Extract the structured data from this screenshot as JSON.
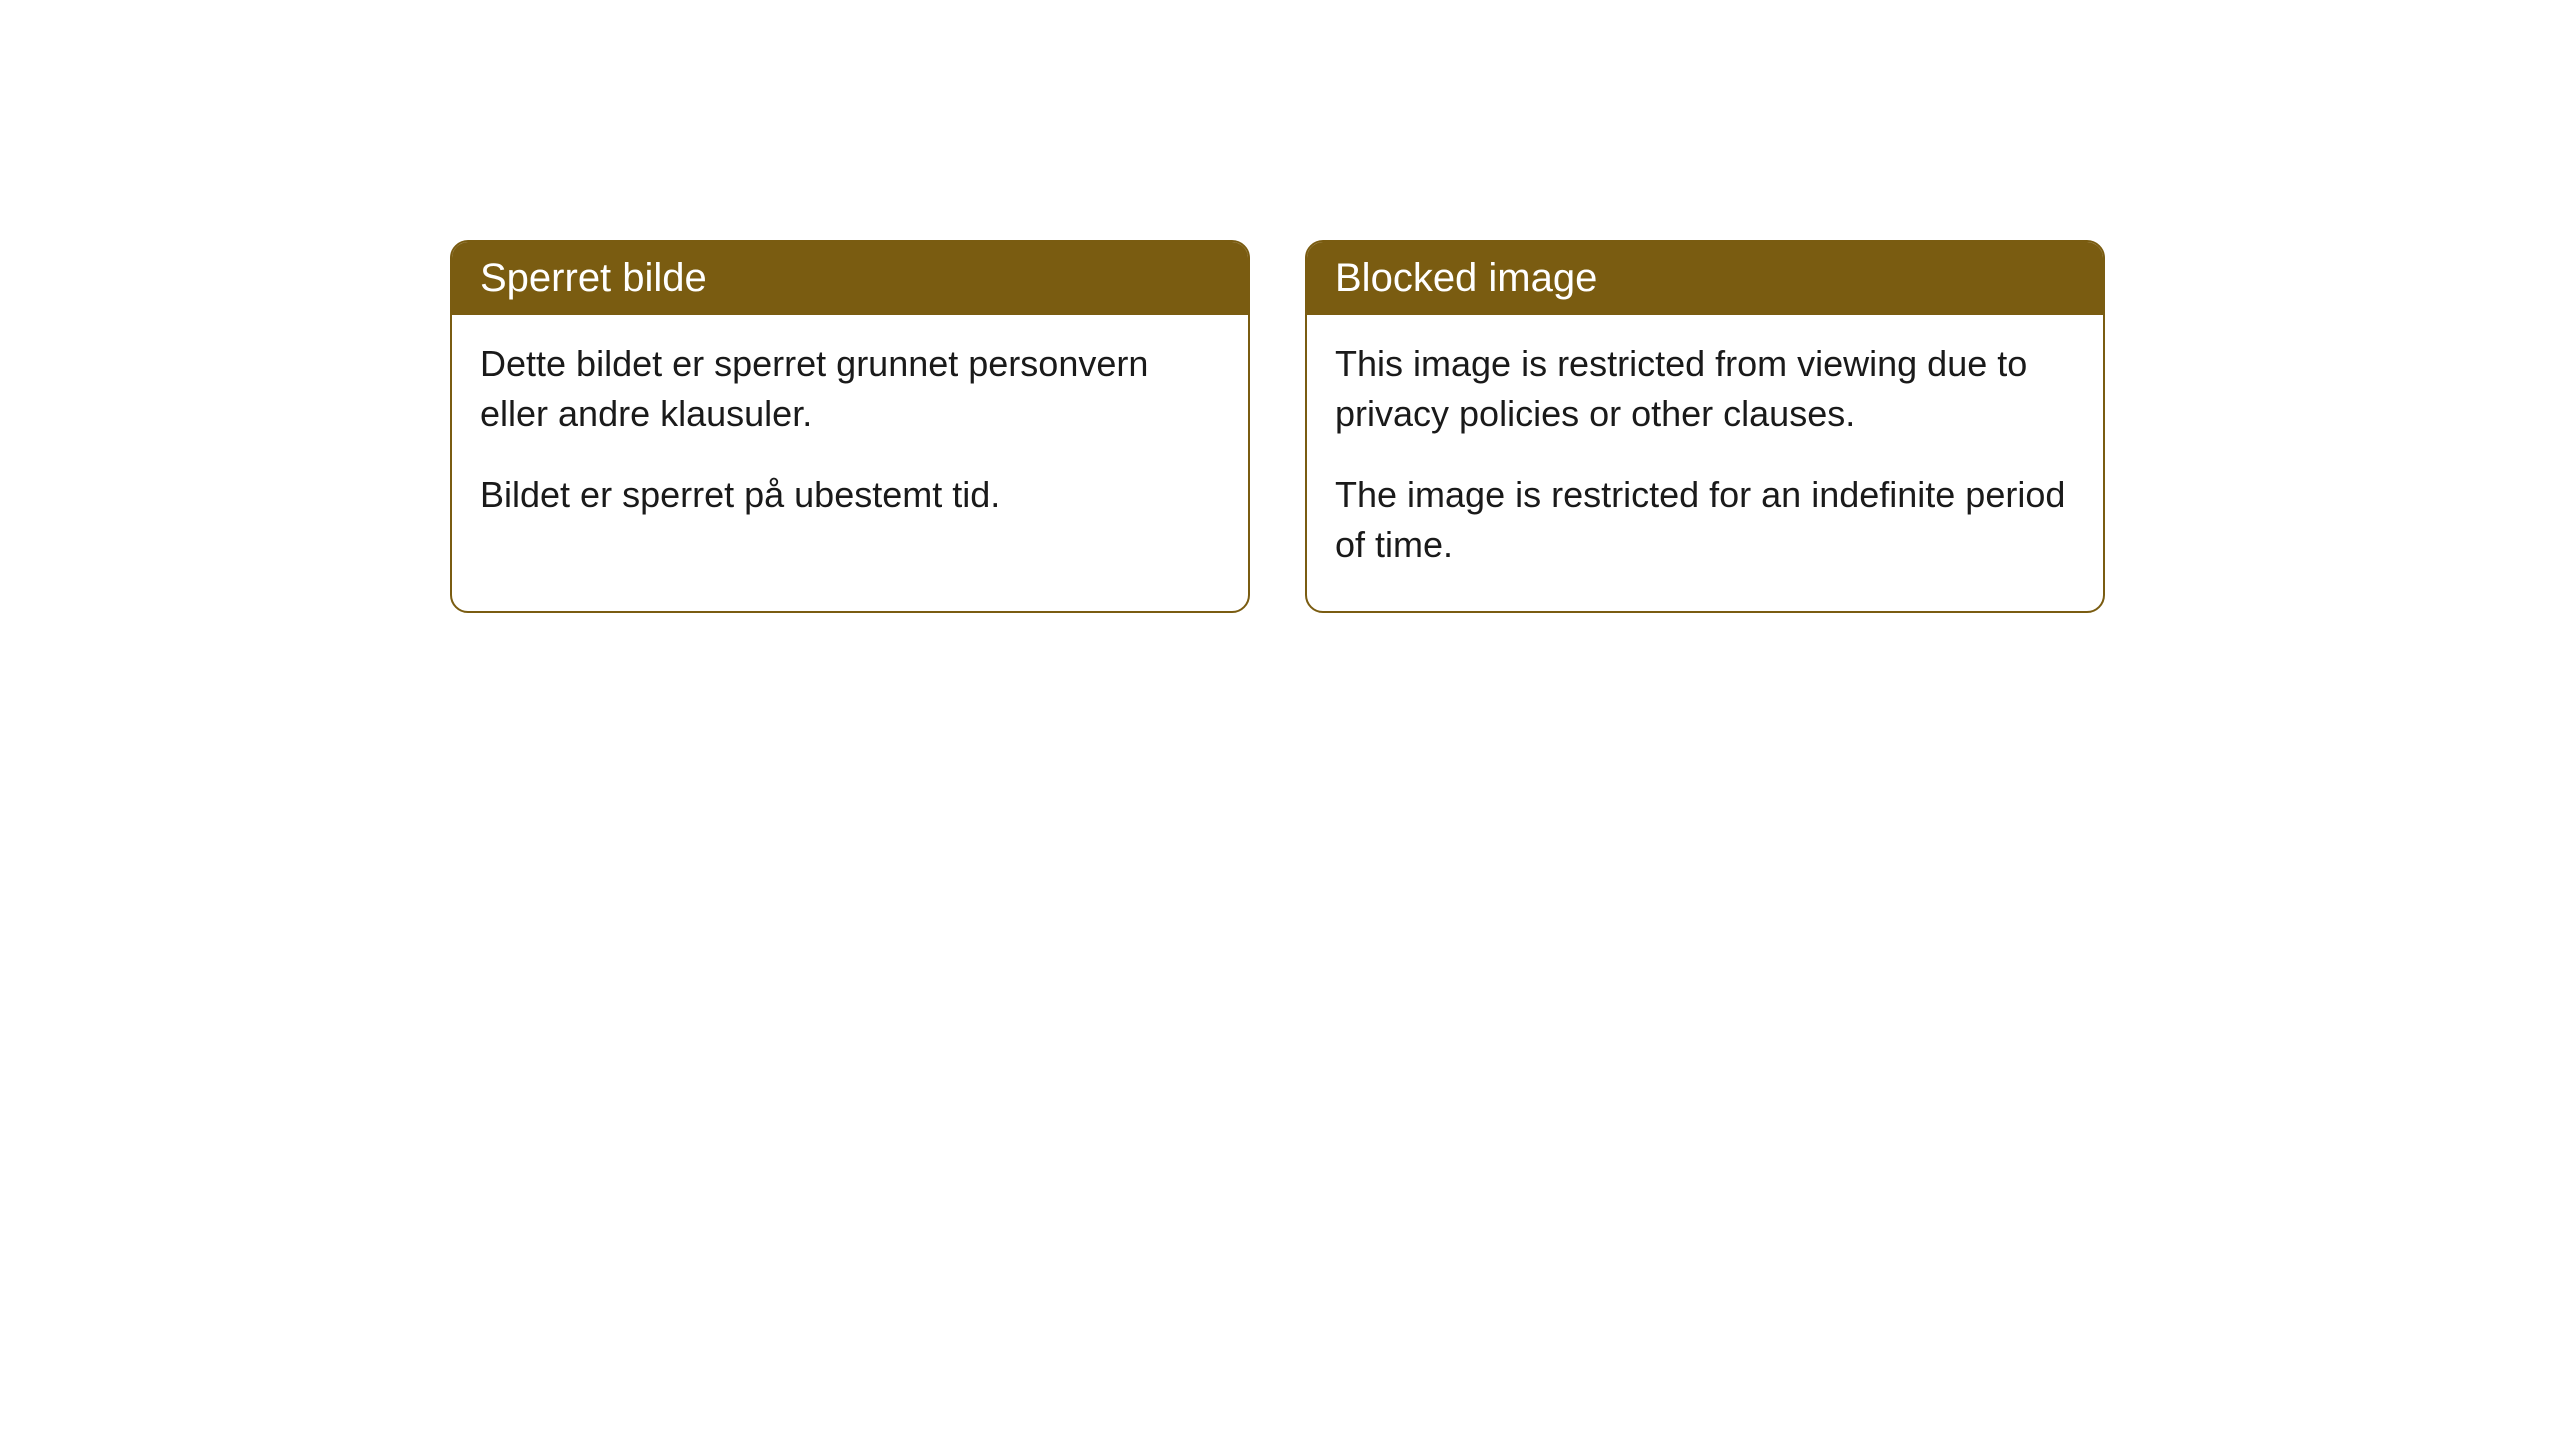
{
  "cards": [
    {
      "title": "Sperret bilde",
      "paragraph1": "Dette bildet er sperret grunnet personvern eller andre klausuler.",
      "paragraph2": "Bildet er sperret på ubestemt tid."
    },
    {
      "title": "Blocked image",
      "paragraph1": "This image is restricted from viewing due to privacy policies or other clauses.",
      "paragraph2": "The image is restricted for an indefinite period of time."
    }
  ],
  "styling": {
    "header_background": "#7a5c11",
    "header_text_color": "#ffffff",
    "border_color": "#7a5c11",
    "body_background": "#ffffff",
    "body_text_color": "#1a1a1a",
    "border_radius": 18,
    "header_font_size": 40,
    "body_font_size": 36
  }
}
